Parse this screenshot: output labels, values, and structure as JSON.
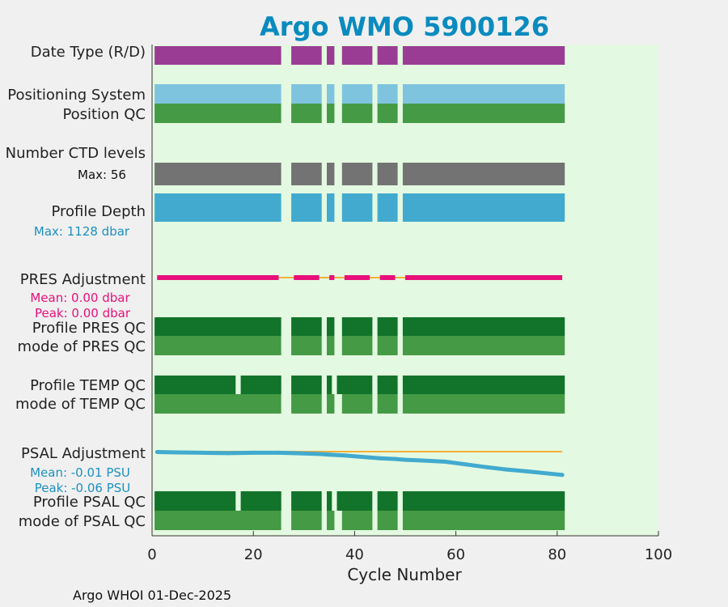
{
  "chart_data": {
    "type": "bar",
    "title": "Argo WMO 5900126",
    "xlabel": "Cycle Number",
    "xlim": [
      0,
      100
    ],
    "xticks": [
      0,
      20,
      40,
      60,
      80,
      100
    ],
    "footer": "Argo WHOI 01-Dec-2025",
    "row_labels": {
      "date_type": "Date Type (R/D)",
      "positioning_system": "Positioning System",
      "position_qc": "Position QC",
      "number_ctd_levels": "Number CTD levels",
      "profile_depth": "Profile Depth",
      "pres_adjustment": "PRES Adjustment",
      "profile_pres_qc": "Profile PRES QC",
      "mode_pres_qc": "mode of PRES QC",
      "profile_temp_qc": "Profile TEMP QC",
      "mode_temp_qc": "mode of TEMP QC",
      "psal_adjustment": "PSAL Adjustment",
      "profile_psal_qc": "Profile PSAL QC",
      "mode_psal_qc": "mode of PSAL QC"
    },
    "annotations": {
      "ctd_max": "Max: 56",
      "depth_max": "Max: 1128 dbar",
      "pres_mean": "Mean: 0.00 dbar",
      "pres_peak": "Peak: 0.00 dbar",
      "psal_mean": "Mean: -0.01 PSU",
      "psal_peak": "Peak: -0.06 PSU"
    },
    "cycle_segments": [
      [
        0.5,
        25.5
      ],
      [
        27.5,
        33.5
      ],
      [
        34.5,
        36
      ],
      [
        37.5,
        43.5
      ],
      [
        44.5,
        48.5
      ],
      [
        49.5,
        81.5
      ]
    ],
    "qc_gap_segments": [
      [
        0.5,
        16.5
      ],
      [
        17.5,
        25.5
      ],
      [
        27.5,
        33.5
      ],
      [
        34.5,
        35.5
      ],
      [
        36.5,
        43.5
      ],
      [
        44.5,
        48.5
      ],
      [
        49.5,
        81.5
      ]
    ],
    "pres_adjustment_segments": [
      [
        1,
        25
      ],
      [
        28,
        33
      ],
      [
        35,
        36
      ],
      [
        38,
        43
      ],
      [
        45,
        48
      ],
      [
        50,
        81
      ]
    ],
    "psal_adjustment": {
      "x": [
        1,
        5,
        10,
        15,
        20,
        25,
        28,
        33,
        35,
        38,
        43,
        45,
        48,
        50,
        55,
        58,
        62,
        66,
        70,
        75,
        81
      ],
      "y": [
        -0.001,
        -0.002,
        -0.003,
        -0.004,
        -0.003,
        -0.003,
        -0.004,
        -0.006,
        -0.008,
        -0.01,
        -0.015,
        -0.017,
        -0.019,
        -0.021,
        -0.024,
        -0.026,
        -0.033,
        -0.04,
        -0.046,
        -0.052,
        -0.06
      ]
    },
    "colors": {
      "title": "#0a8bbf",
      "plot_bg": "#e4f9e1",
      "date_type": "#9b3c94",
      "positioning_system": "#7ec4de",
      "qc_light": "#459a45",
      "qc_dark": "#12732a",
      "ctd": "#737373",
      "depth": "#42aacf",
      "pres": "#e8107a",
      "zero_line": "#f2b13b",
      "psal": "#42aacf",
      "annot_blue": "#1c91c0",
      "annot_pink": "#e8107a"
    }
  }
}
